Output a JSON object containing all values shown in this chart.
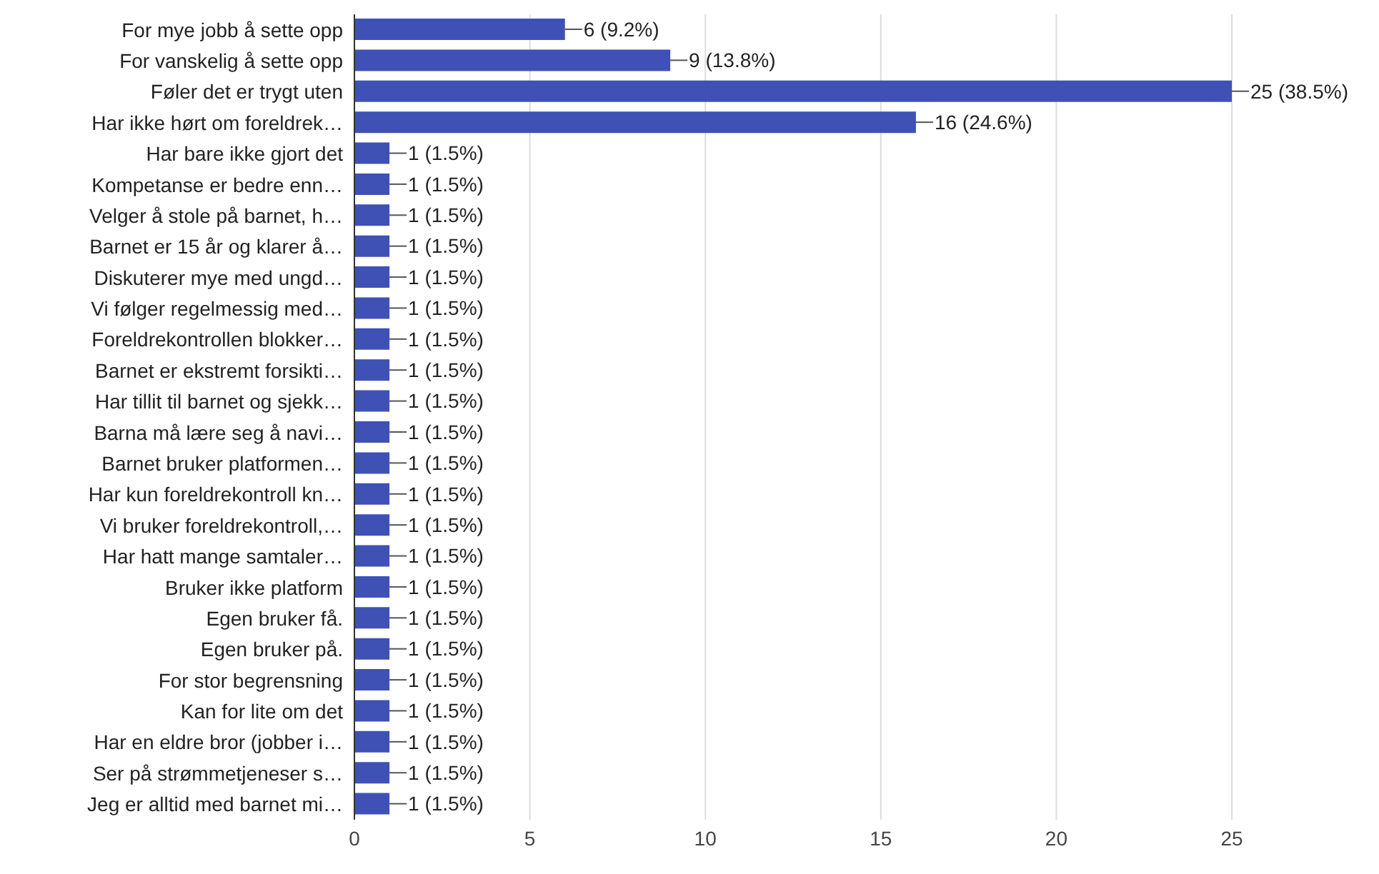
{
  "chart_data": {
    "type": "bar",
    "orientation": "horizontal",
    "categories": [
      "For mye jobb å sette opp",
      "For vanskelig å sette opp",
      "Føler det er trygt uten",
      "Har ikke hørt om foreldrek…",
      "Har bare ikke gjort det",
      "Kompetanse er bedre enn…",
      "Velger å stole på barnet, h…",
      "Barnet er 15 år og klarer å…",
      "Diskuterer mye med ungd…",
      "Vi følger regelmessig med…",
      "Foreldrekontrollen blokker…",
      "Barnet er ekstremt forsikti…",
      "Har tillit til barnet og sjekk…",
      "Barna må lære seg å navi…",
      "Barnet bruker platformen…",
      "Har kun foreldrekontroll kn…",
      "Vi bruker foreldrekontroll,…",
      "Har hatt mange samtaler…",
      "Bruker ikke platform",
      "Egen bruker få.",
      "Egen bruker på.",
      "For stor begrensning",
      "Kan for lite om det",
      "Har en eldre bror (jobber i…",
      "Ser på strømmetjeneser s…",
      "Jeg er alltid med barnet mi…"
    ],
    "values": [
      6,
      9,
      25,
      16,
      1,
      1,
      1,
      1,
      1,
      1,
      1,
      1,
      1,
      1,
      1,
      1,
      1,
      1,
      1,
      1,
      1,
      1,
      1,
      1,
      1,
      1
    ],
    "value_labels": [
      "6 (9.2%)",
      "9 (13.8%)",
      "25 (38.5%)",
      "16 (24.6%)",
      "1 (1.5%)",
      "1 (1.5%)",
      "1 (1.5%)",
      "1 (1.5%)",
      "1 (1.5%)",
      "1 (1.5%)",
      "1 (1.5%)",
      "1 (1.5%)",
      "1 (1.5%)",
      "1 (1.5%)",
      "1 (1.5%)",
      "1 (1.5%)",
      "1 (1.5%)",
      "1 (1.5%)",
      "1 (1.5%)",
      "1 (1.5%)",
      "1 (1.5%)",
      "1 (1.5%)",
      "1 (1.5%)",
      "1 (1.5%)",
      "1 (1.5%)",
      "1 (1.5%)"
    ],
    "color": "#3f51b5",
    "xlim": [
      0,
      25
    ],
    "xticks": [
      0,
      5,
      10,
      15,
      20,
      25
    ],
    "grid": "x"
  }
}
